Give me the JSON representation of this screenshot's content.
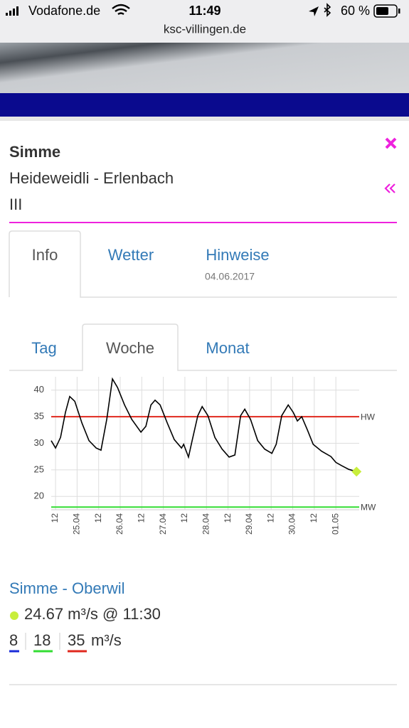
{
  "status_bar": {
    "carrier": "Vodafone.de",
    "time": "11:49",
    "battery": "60 %",
    "url": "ksc-villingen.de"
  },
  "card": {
    "river": "Simme",
    "section": "Heideweidli - Erlenbach",
    "grade": "III"
  },
  "tabs": {
    "items": [
      "Info",
      "Wetter",
      "Hinweise"
    ],
    "hinweise_date": "04.06.2017",
    "period": [
      "Tag",
      "Woche",
      "Monat"
    ]
  },
  "chart_data": {
    "type": "line",
    "color": "#000000",
    "marker_color": "#c8ee3c",
    "grid": true,
    "x": [
      9.6,
      12,
      14.8,
      17.5,
      19.9,
      22.7,
      26.7,
      30.6,
      34.6,
      37.3,
      40.5,
      43.7,
      46.5,
      50.4,
      54.4,
      59.5,
      62.3,
      65.1,
      67.4,
      70.2,
      74.2,
      78.1,
      82.1,
      83.3,
      86,
      88,
      91.2,
      93.6,
      96.8,
      100.7,
      104.7,
      108.6,
      111.8,
      115,
      117.3,
      120.5,
      124.5,
      128.4,
      132.4,
      134.8,
      137.9,
      141.5,
      144.3,
      146.6,
      149,
      152.2,
      155.4,
      160.1,
      165.3,
      168,
      171.2,
      175.2,
      179.5
    ],
    "values": [
      30.5,
      29.1,
      31.1,
      35.8,
      38.8,
      37.9,
      33.8,
      30.5,
      29.1,
      28.7,
      34.5,
      42.1,
      40.5,
      37.2,
      34.5,
      32.1,
      33.2,
      37.2,
      38.1,
      37.2,
      33.8,
      30.7,
      29.1,
      29.8,
      27.4,
      30.5,
      35.2,
      36.9,
      35.2,
      31.1,
      28.9,
      27.4,
      27.8,
      35.2,
      36.4,
      34.5,
      30.5,
      28.9,
      28.1,
      29.8,
      35.2,
      37.2,
      35.8,
      34.2,
      35.0,
      32.5,
      29.8,
      28.5,
      27.5,
      26.4,
      25.8,
      25.1,
      24.67
    ],
    "xlim": [
      9.6,
      181
    ],
    "ylim": [
      17.5,
      42.5
    ],
    "yticks": [
      20,
      25,
      30,
      35,
      40
    ],
    "xticks": [
      {
        "value": 12,
        "label": "12"
      },
      {
        "value": 24,
        "label": "25.04"
      },
      {
        "value": 36,
        "label": "12"
      },
      {
        "value": 48,
        "label": "26.04"
      },
      {
        "value": 60,
        "label": "12"
      },
      {
        "value": 72,
        "label": "27.04"
      },
      {
        "value": 84,
        "label": "12"
      },
      {
        "value": 96,
        "label": "28.04"
      },
      {
        "value": 108,
        "label": "12"
      },
      {
        "value": 120,
        "label": "29.04"
      },
      {
        "value": 132,
        "label": "12"
      },
      {
        "value": 144,
        "label": "30.04"
      },
      {
        "value": 156,
        "label": "12"
      },
      {
        "value": 168,
        "label": "01.05"
      }
    ],
    "reference_lines": [
      {
        "label": "HW",
        "value": 35,
        "color": "#e0281e"
      },
      {
        "label": "MW",
        "value": 18,
        "color": "#33dd33"
      }
    ]
  },
  "reading": {
    "station": "Simme - Oberwil",
    "current": "24.67 m³/s @ 11:30",
    "levels": [
      "8",
      "18",
      "35"
    ],
    "unit": "m³/s"
  }
}
